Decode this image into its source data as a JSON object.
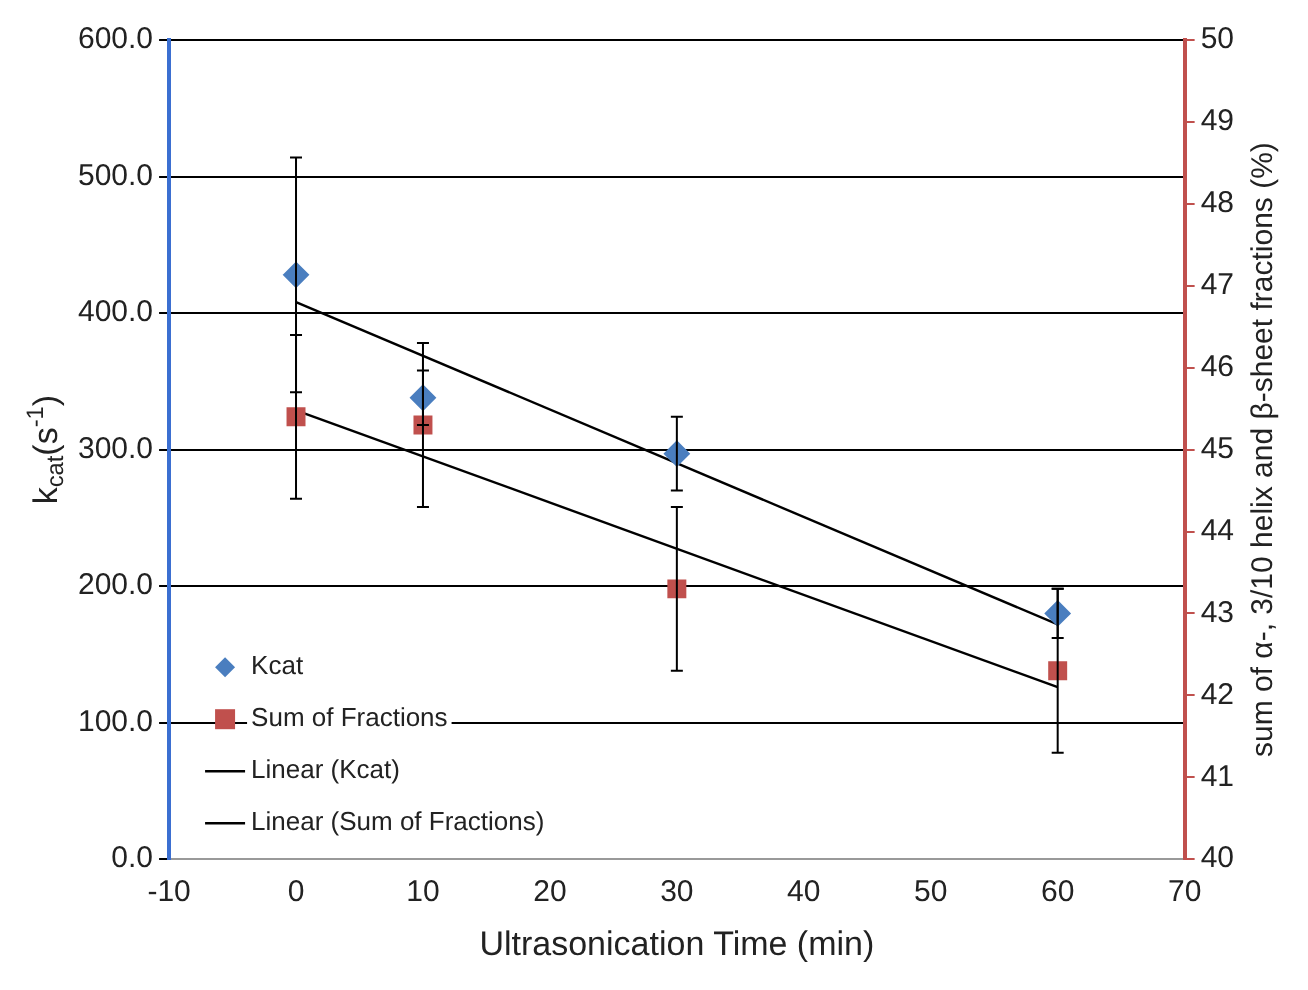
{
  "chart_data": {
    "type": "scatter",
    "xlabel": "Ultrasonication Time (min)",
    "ylabel": "k$_{cat}$(s$^{-1}$)",
    "y2label": "sum of α-, 3/10 helix and β-sheet fractions (%)",
    "series": [
      {
        "name": "Kcat",
        "type": "scatter",
        "color": "#4a7ebf",
        "marker": "diamond",
        "x": [
          0,
          10,
          30,
          60
        ],
        "values": [
          428,
          338,
          297,
          180
        ],
        "errors": [
          86,
          20,
          27,
          18
        ]
      },
      {
        "name": "Sum of Fractions",
        "type": "scatter",
        "color": "#c0504d",
        "marker": "square",
        "axis": "y2",
        "x": [
          0,
          10,
          30,
          60
        ],
        "values": [
          45.4,
          45.3,
          43.3,
          42.3
        ],
        "errors": [
          1,
          1,
          1,
          1
        ]
      },
      {
        "name": "Linear (Kcat)",
        "type": "line",
        "color": "#000000",
        "marker": "none",
        "x": [
          0,
          60
        ],
        "values": [
          408,
          172
        ]
      },
      {
        "name": "Linear (Sum of Fractions)",
        "type": "line",
        "color": "#000000",
        "marker": "none",
        "axis": "y2",
        "x": [
          0,
          60
        ],
        "values": [
          45.48,
          42.1
        ]
      }
    ],
    "xlim": [
      -10,
      70
    ],
    "xticks": [
      -10,
      0,
      10,
      20,
      30,
      40,
      50,
      60,
      70
    ],
    "ylim": [
      0,
      600
    ],
    "yticks": [
      {
        "value": 0,
        "label": "0.0"
      },
      {
        "value": 100,
        "label": "100.0"
      },
      {
        "value": 200,
        "label": "200.0"
      },
      {
        "value": 300,
        "label": "300.0"
      },
      {
        "value": 400,
        "label": "400.0"
      },
      {
        "value": 500,
        "label": "500.0"
      },
      {
        "value": 600,
        "label": "600.0"
      }
    ],
    "y2lim": [
      40,
      50
    ],
    "y2ticks": [
      40,
      41,
      42,
      43,
      44,
      45,
      46,
      47,
      48,
      49,
      50
    ],
    "grid": "y",
    "legend": "bottom left"
  }
}
